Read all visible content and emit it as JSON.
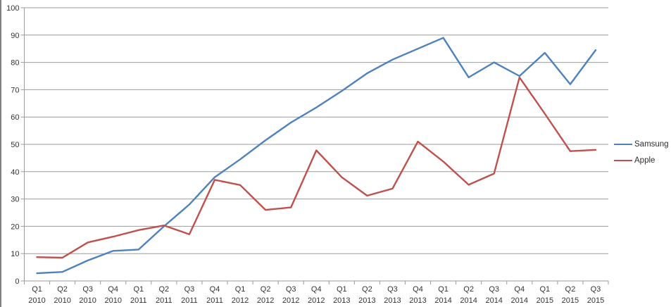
{
  "chart_data": {
    "type": "line",
    "title": "",
    "xlabel": "",
    "ylabel": "",
    "ylim": [
      0,
      100
    ],
    "ytick_interval": 10,
    "ytick_labels": [
      "0",
      "10",
      "20",
      "30",
      "40",
      "50",
      "60",
      "70",
      "80",
      "90",
      "100"
    ],
    "grid": "horizontal-on",
    "legend_position": "right",
    "categories": [
      {
        "quarter": "Q1",
        "year": "2010"
      },
      {
        "quarter": "Q2",
        "year": "2010"
      },
      {
        "quarter": "Q3",
        "year": "2010"
      },
      {
        "quarter": "Q4",
        "year": "2010"
      },
      {
        "quarter": "Q1",
        "year": "2011"
      },
      {
        "quarter": "Q2",
        "year": "2011"
      },
      {
        "quarter": "Q3",
        "year": "2011"
      },
      {
        "quarter": "Q4",
        "year": "2011"
      },
      {
        "quarter": "Q1",
        "year": "2012"
      },
      {
        "quarter": "Q2",
        "year": "2012"
      },
      {
        "quarter": "Q3",
        "year": "2012"
      },
      {
        "quarter": "Q4",
        "year": "2012"
      },
      {
        "quarter": "Q1",
        "year": "2013"
      },
      {
        "quarter": "Q2",
        "year": "2013"
      },
      {
        "quarter": "Q3",
        "year": "2013"
      },
      {
        "quarter": "Q4",
        "year": "2013"
      },
      {
        "quarter": "Q1",
        "year": "2014"
      },
      {
        "quarter": "Q2",
        "year": "2014"
      },
      {
        "quarter": "Q3",
        "year": "2014"
      },
      {
        "quarter": "Q4",
        "year": "2014"
      },
      {
        "quarter": "Q1",
        "year": "2015"
      },
      {
        "quarter": "Q2",
        "year": "2015"
      },
      {
        "quarter": "Q3",
        "year": "2015"
      }
    ],
    "series": [
      {
        "name": "Samsung",
        "color": "#4F81BD",
        "values": [
          2.8,
          3.3,
          7.5,
          11,
          11.5,
          20,
          28,
          38,
          44.5,
          51.5,
          58,
          63.5,
          69.5,
          76,
          81,
          85,
          89,
          74.5,
          80,
          75,
          83.5,
          72,
          84.5
        ]
      },
      {
        "name": "Apple",
        "color": "#C0504D",
        "values": [
          8.7,
          8.5,
          14.1,
          16.2,
          18.6,
          20.3,
          17.1,
          37,
          35.1,
          26,
          26.9,
          47.8,
          38,
          31.2,
          33.8,
          51,
          43.7,
          35.2,
          39.3,
          74.5,
          61.2,
          47.5,
          48
        ]
      }
    ]
  }
}
